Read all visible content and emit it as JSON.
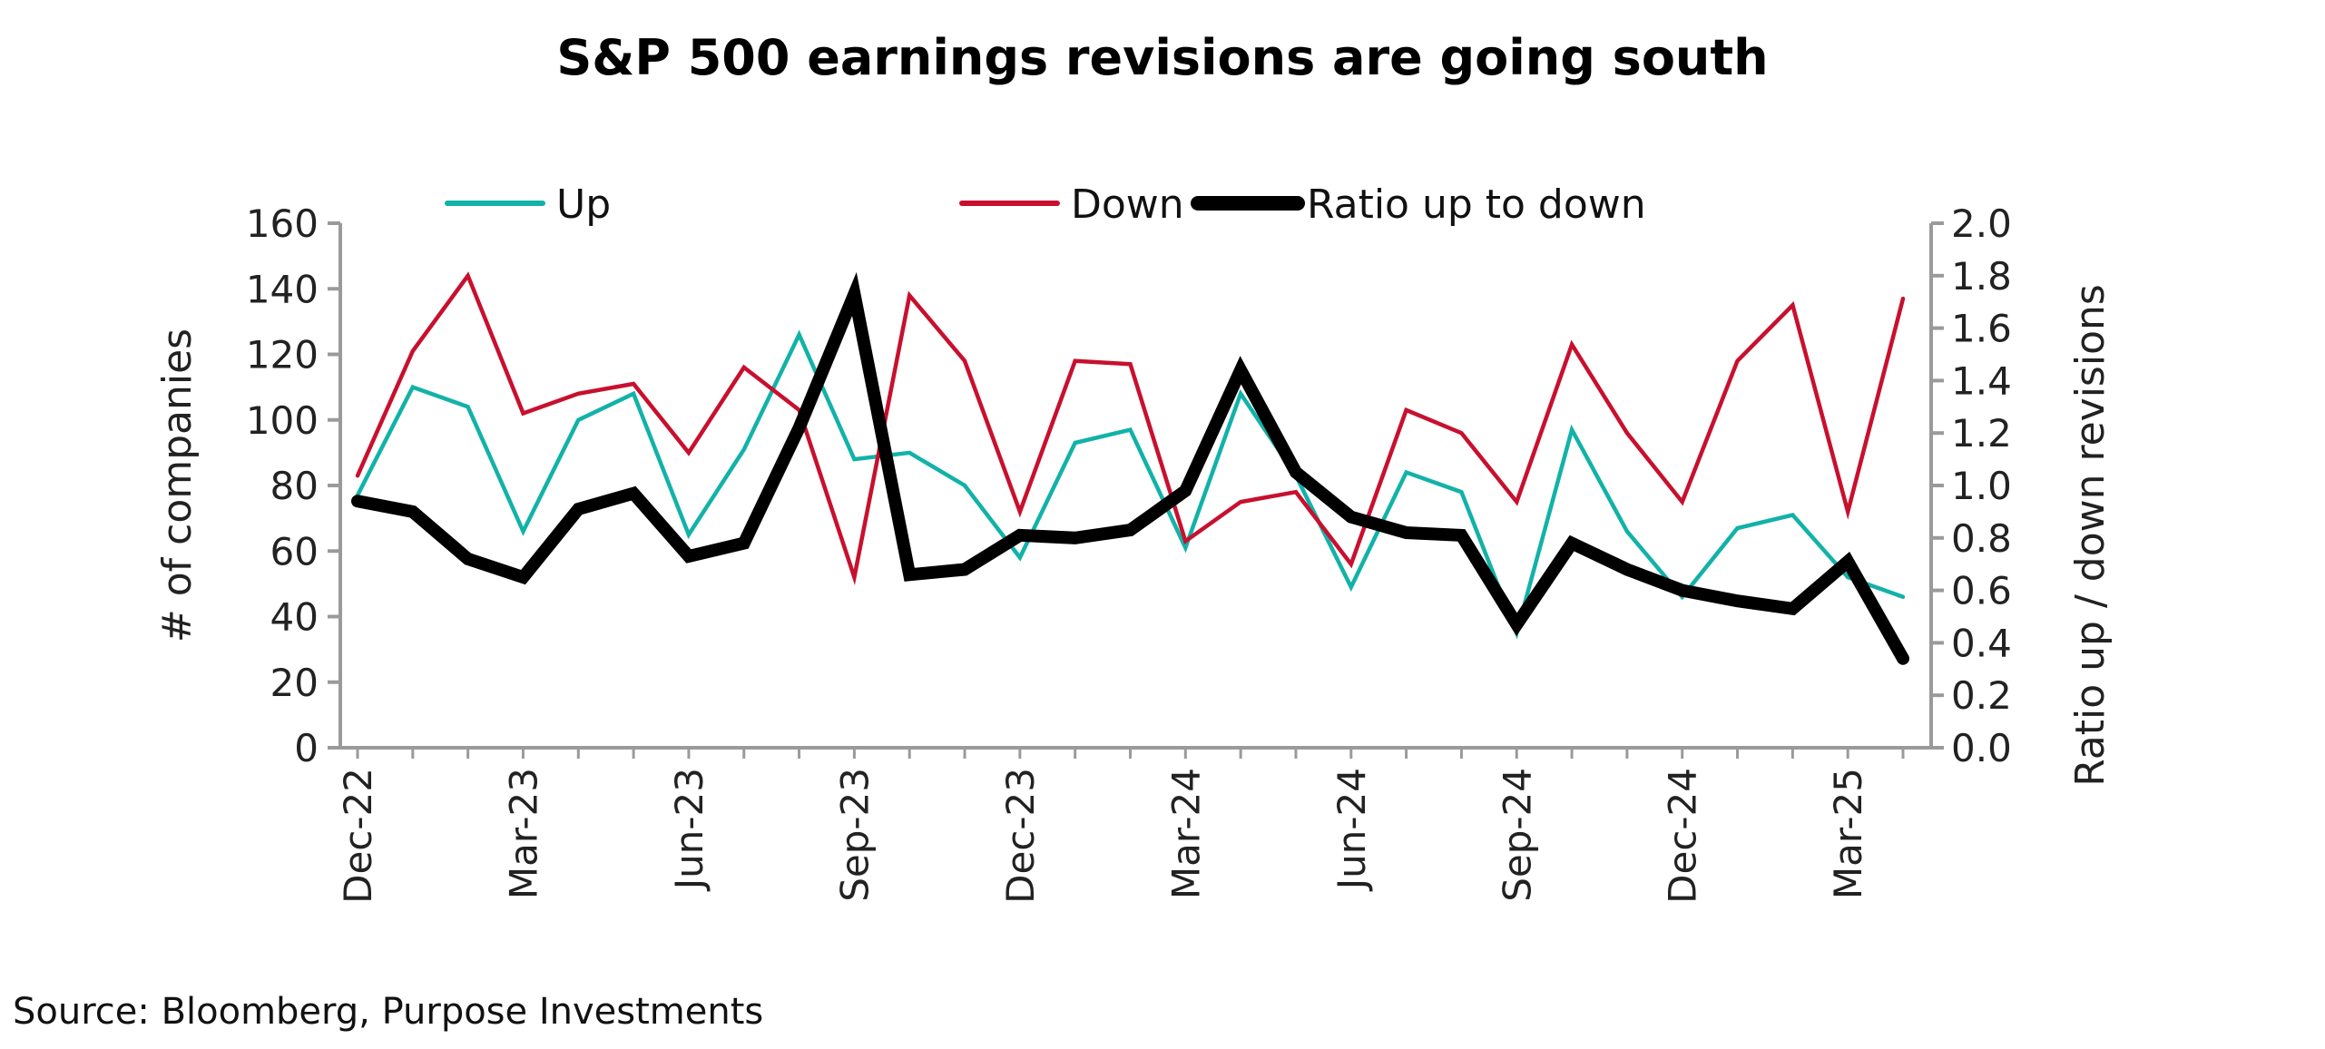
{
  "chart_data": {
    "type": "line",
    "title": "S&P 500 earnings revisions are going south",
    "source": "Source: Bloomberg, Purpose Investments",
    "x": [
      "Dec-22",
      "Jan-23",
      "Feb-23",
      "Mar-23",
      "Apr-23",
      "May-23",
      "Jun-23",
      "Jul-23",
      "Aug-23",
      "Sep-23",
      "Oct-23",
      "Nov-23",
      "Dec-23",
      "Jan-24",
      "Feb-24",
      "Mar-24",
      "Apr-24",
      "May-24",
      "Jun-24",
      "Jul-24",
      "Aug-24",
      "Sep-24",
      "Oct-24",
      "Nov-24",
      "Dec-24",
      "Jan-25",
      "Feb-25",
      "Mar-25",
      "Apr-25"
    ],
    "xtick_labels": [
      "Dec-22",
      "Mar-23",
      "Jun-23",
      "Sep-23",
      "Dec-23",
      "Mar-24",
      "Jun-24",
      "Sep-24",
      "Dec-24",
      "Mar-25"
    ],
    "ylabel": "# of companies",
    "y2label": "Ratio up / down revisions",
    "ylim": [
      0,
      160
    ],
    "y2lim": [
      0,
      2.0
    ],
    "yticks": [
      "0",
      "20",
      "40",
      "60",
      "80",
      "100",
      "120",
      "140",
      "160"
    ],
    "y2ticks": [
      "0.0",
      "0.2",
      "0.4",
      "0.6",
      "0.8",
      "1.0",
      "1.2",
      "1.4",
      "1.6",
      "1.8",
      "2.0"
    ],
    "grid": false,
    "legend_position": "top",
    "series": [
      {
        "name": "Up",
        "axis": "left",
        "color": "#12B2A8",
        "values": [
          77,
          110,
          104,
          66,
          100,
          108,
          65,
          91,
          126,
          88,
          90,
          80,
          58,
          93,
          97,
          61,
          108,
          83,
          49,
          84,
          78,
          35,
          97,
          66,
          46,
          67,
          71,
          52,
          46
        ]
      },
      {
        "name": "Down",
        "axis": "left",
        "color": "#C8102E",
        "values": [
          83,
          121,
          144,
          102,
          108,
          111,
          90,
          116,
          103,
          52,
          138,
          118,
          72,
          118,
          117,
          63,
          75,
          78,
          56,
          103,
          96,
          75,
          123,
          96,
          75,
          118,
          135,
          72,
          137
        ]
      },
      {
        "name": "Ratio up to down",
        "axis": "right",
        "color": "#000000",
        "values": [
          0.94,
          0.9,
          0.72,
          0.65,
          0.91,
          0.97,
          0.73,
          0.78,
          1.22,
          1.73,
          0.66,
          0.68,
          0.81,
          0.8,
          0.83,
          0.98,
          1.44,
          1.05,
          0.88,
          0.82,
          0.81,
          0.47,
          0.78,
          0.68,
          0.6,
          0.56,
          0.53,
          0.71,
          0.34
        ]
      }
    ]
  }
}
